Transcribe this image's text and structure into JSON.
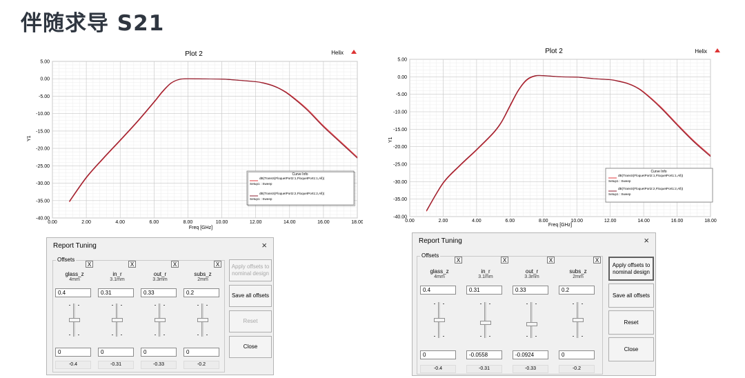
{
  "slide": {
    "title": "伴随求导 S21"
  },
  "plot_left": {
    "title": "Plot 2",
    "brand": "Helix",
    "ylabel": "Y1",
    "xlabel": "Freq [GHz]",
    "xticks": [
      "0.00",
      "2.00",
      "4.00",
      "6.00",
      "8.00",
      "10.00",
      "12.00",
      "14.00",
      "16.00",
      "18.00"
    ],
    "yticks": [
      "5.00",
      "0.00",
      "-5.00",
      "-10.00",
      "-15.00",
      "-20.00",
      "-25.00",
      "-30.00",
      "-35.00",
      "-40.00"
    ],
    "legend": {
      "title": "Curve Info",
      "entries": [
        {
          "line1": "dB(TransS(FloquetPort2:1,FloquetPort1:1,All))",
          "line2": "Setup1 : Sweep",
          "color": "#e03a3e"
        },
        {
          "line1": "dB(TransS(FloquetPort2:2,FloquetPort1:2,All))",
          "line2": "Setup1 : Sweep",
          "color": "#8b1e2f"
        }
      ]
    }
  },
  "plot_right": {
    "title": "Plot 2",
    "brand": "Helix",
    "ylabel": "Y1",
    "xlabel": "Freq [GHz]",
    "xticks": [
      "0.00",
      "2.00",
      "4.00",
      "6.00",
      "8.00",
      "10.00",
      "12.00",
      "14.00",
      "16.00",
      "18.00"
    ],
    "yticks": [
      "5.00",
      "0.00",
      "-5.00",
      "-10.00",
      "-15.00",
      "-20.00",
      "-25.00",
      "-30.00",
      "-35.00",
      "-40.00"
    ],
    "legend": {
      "title": "Curve Info",
      "entries": [
        {
          "line1": "dB(TransS(FloquetPort2:1,FloquetPort1:1,All))",
          "line2": "Setup1 : Sweep",
          "color": "#e03a3e"
        },
        {
          "line1": "dB(TransS(FloquetPort2:2,FloquetPort1:2,All))",
          "line2": "Setup1 : Sweep",
          "color": "#8b1e2f"
        }
      ]
    }
  },
  "chart_data": [
    {
      "type": "line",
      "title": "Plot 2",
      "xlabel": "Freq [GHz]",
      "ylabel": "Y1",
      "xlim": [
        0,
        18
      ],
      "ylim": [
        -40,
        5
      ],
      "grid": true,
      "legend": "bottom-right",
      "series": [
        {
          "name": "dB(TransS(FloquetPort2:1,FloquetPort1:1,All))",
          "color": "#e03a3e",
          "x": [
            1.0,
            2.0,
            3.0,
            4.0,
            5.0,
            6.0,
            6.5,
            7.0,
            7.5,
            8.0,
            9.0,
            10.0,
            11.0,
            12.0,
            12.5,
            13.0,
            13.5,
            14.0,
            15.0,
            16.0,
            17.0,
            18.0
          ],
          "y": [
            -35.4,
            -28.5,
            -23.0,
            -17.8,
            -12.5,
            -6.8,
            -3.8,
            -1.3,
            -0.2,
            0.0,
            -0.05,
            -0.1,
            -0.4,
            -0.8,
            -1.2,
            -1.9,
            -3.0,
            -4.5,
            -8.5,
            -13.5,
            -18.0,
            -22.5
          ]
        },
        {
          "name": "dB(TransS(FloquetPort2:2,FloquetPort1:2,All))",
          "color": "#8b1e2f",
          "x": [
            1.0,
            2.0,
            3.0,
            4.0,
            5.0,
            6.0,
            6.5,
            7.0,
            7.5,
            8.0,
            9.0,
            10.0,
            11.0,
            12.0,
            12.5,
            13.0,
            13.5,
            14.0,
            15.0,
            16.0,
            17.0,
            18.0
          ],
          "y": [
            -35.2,
            -28.3,
            -22.8,
            -17.6,
            -12.3,
            -6.6,
            -3.6,
            -1.2,
            -0.15,
            0.0,
            -0.05,
            -0.1,
            -0.45,
            -0.85,
            -1.3,
            -2.0,
            -3.1,
            -4.7,
            -8.8,
            -13.8,
            -18.3,
            -22.8
          ]
        }
      ]
    },
    {
      "type": "line",
      "title": "Plot 2",
      "xlabel": "Freq [GHz]",
      "ylabel": "Y1",
      "xlim": [
        0,
        18
      ],
      "ylim": [
        -40,
        5
      ],
      "grid": true,
      "legend": "right",
      "series": [
        {
          "name": "dB(TransS(FloquetPort2:1,FloquetPort1:1,All))",
          "color": "#e03a3e",
          "x": [
            1.0,
            2.0,
            3.0,
            4.0,
            5.0,
            5.5,
            6.0,
            6.5,
            7.0,
            7.5,
            8.0,
            9.0,
            10.0,
            11.0,
            12.0,
            12.5,
            13.0,
            13.5,
            14.0,
            15.0,
            16.0,
            17.0,
            18.0
          ],
          "y": [
            -38.5,
            -30.5,
            -25.5,
            -21.0,
            -16.2,
            -13.0,
            -8.5,
            -4.0,
            -1.0,
            0.2,
            0.3,
            0.0,
            -0.1,
            -0.5,
            -0.8,
            -1.2,
            -1.8,
            -2.8,
            -4.3,
            -8.5,
            -13.5,
            -18.3,
            -22.5
          ]
        },
        {
          "name": "dB(TransS(FloquetPort2:2,FloquetPort1:2,All))",
          "color": "#8b1e2f",
          "x": [
            1.0,
            2.0,
            3.0,
            4.0,
            5.0,
            5.5,
            6.0,
            6.5,
            7.0,
            7.5,
            8.0,
            9.0,
            10.0,
            11.0,
            12.0,
            12.5,
            13.0,
            13.5,
            14.0,
            15.0,
            16.0,
            17.0,
            18.0
          ],
          "y": [
            -38.3,
            -30.3,
            -25.3,
            -20.8,
            -16.0,
            -12.8,
            -8.2,
            -3.8,
            -0.8,
            0.3,
            0.35,
            0.0,
            -0.1,
            -0.55,
            -0.85,
            -1.3,
            -1.9,
            -2.9,
            -4.5,
            -8.8,
            -13.8,
            -18.6,
            -22.8
          ]
        }
      ]
    }
  ],
  "dialog_left": {
    "title": "Report Tuning",
    "close_icon": "×",
    "group_label": "Offsets",
    "x_label": "X",
    "params": [
      {
        "name": "glass_z",
        "value": "4mm",
        "input": "0.4",
        "offset": "0",
        "readout": "-0.4",
        "level": 0.5
      },
      {
        "name": "in_r",
        "value": "3.1mm",
        "input": "0.31",
        "offset": "0",
        "readout": "-0.31",
        "level": 0.5
      },
      {
        "name": "out_r",
        "value": "3.3mm",
        "input": "0.33",
        "offset": "0",
        "readout": "-0.33",
        "level": 0.5
      },
      {
        "name": "subs_z",
        "value": "2mm",
        "input": "0.2",
        "offset": "0",
        "readout": "-0.2",
        "level": 0.5
      }
    ],
    "buttons": {
      "apply_line1": "Apply offsets to",
      "apply_line2": "nominal design",
      "save": "Save all offsets",
      "reset": "Reset",
      "close": "Close"
    }
  },
  "dialog_right": {
    "title": "Report Tuning",
    "close_icon": "×",
    "group_label": "Offsets",
    "x_label": "X",
    "params": [
      {
        "name": "glass_z",
        "value": "4mm",
        "input": "0.4",
        "offset": "0",
        "readout": "-0.4",
        "level": 0.5
      },
      {
        "name": "in_r",
        "value": "3.1mm",
        "input": "0.31",
        "offset": "-0.0558",
        "readout": "-0.31",
        "level": 0.58
      },
      {
        "name": "out_r",
        "value": "3.3mm",
        "input": "0.33",
        "offset": "-0.0924",
        "readout": "-0.33",
        "level": 0.64
      },
      {
        "name": "subs_z",
        "value": "2mm",
        "input": "0.2",
        "offset": "0",
        "readout": "-0.2",
        "level": 0.5
      }
    ],
    "buttons": {
      "apply_line1": "Apply offsets to",
      "apply_line2": "nominal design",
      "save": "Save all offsets",
      "reset": "Reset",
      "close": "Close"
    }
  }
}
